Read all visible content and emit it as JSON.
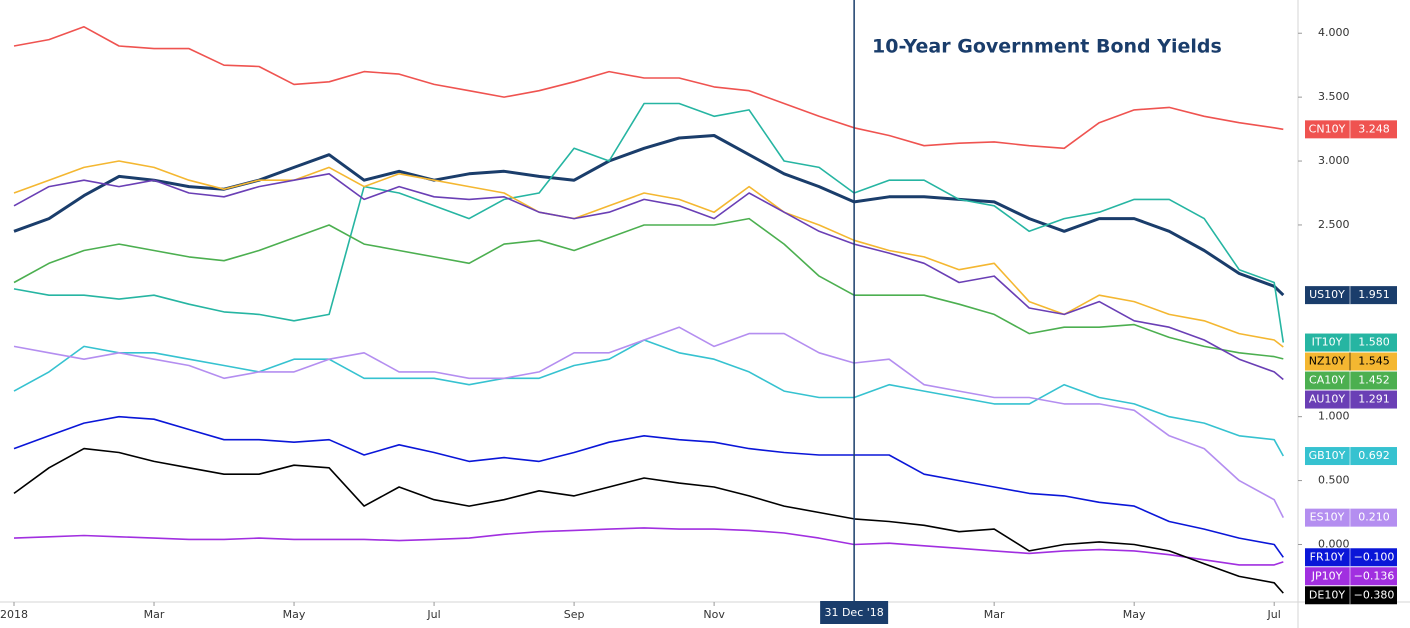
{
  "chart_data": {
    "type": "line",
    "title": "10-Year Government Bond Yields",
    "x": [
      0,
      0.5,
      1,
      1.5,
      2,
      2.5,
      3,
      3.5,
      4,
      4.5,
      5,
      5.5,
      6,
      6.5,
      7,
      7.5,
      8,
      8.5,
      9,
      9.5,
      10,
      10.5,
      11,
      11.5,
      12,
      12.5,
      13,
      13.5,
      14,
      14.5,
      15,
      15.5,
      16,
      16.5,
      17,
      17.5,
      18,
      18.13
    ],
    "xlim": [
      -0.2,
      18.34
    ],
    "xticks": [
      {
        "value": 0,
        "label": "2018"
      },
      {
        "value": 2,
        "label": "Mar"
      },
      {
        "value": 4,
        "label": "May"
      },
      {
        "value": 6,
        "label": "Jul"
      },
      {
        "value": 8,
        "label": "Sep"
      },
      {
        "value": 10,
        "label": "Nov"
      },
      {
        "value": 14,
        "label": "Mar"
      },
      {
        "value": 16,
        "label": "May"
      },
      {
        "value": 18,
        "label": "Jul"
      }
    ],
    "marker": {
      "x": 12,
      "label": "31 Dec '18"
    },
    "ylim": [
      -0.45,
      4.26
    ],
    "yticks": [
      {
        "value": 4,
        "label": "4.000"
      },
      {
        "value": 3.5,
        "label": "3.500"
      },
      {
        "value": 3,
        "label": "3.000"
      },
      {
        "value": 2.5,
        "label": "2.500"
      },
      {
        "value": 1,
        "label": "1.000"
      },
      {
        "value": 0.5,
        "label": "0.500"
      },
      {
        "value": 0,
        "label": "0.000"
      }
    ],
    "series": [
      {
        "name": "CN10Y",
        "color": "#ef5350",
        "values": [
          3.9,
          3.95,
          4.05,
          3.9,
          3.88,
          3.88,
          3.75,
          3.74,
          3.6,
          3.62,
          3.7,
          3.68,
          3.6,
          3.55,
          3.5,
          3.55,
          3.62,
          3.7,
          3.65,
          3.65,
          3.58,
          3.55,
          3.45,
          3.35,
          3.26,
          3.2,
          3.12,
          3.14,
          3.15,
          3.12,
          3.1,
          3.3,
          3.4,
          3.42,
          3.35,
          3.3,
          3.26,
          3.248
        ]
      },
      {
        "name": "US10Y",
        "color": "#1a3d6b",
        "values": [
          2.45,
          2.55,
          2.73,
          2.88,
          2.85,
          2.8,
          2.78,
          2.85,
          2.95,
          3.05,
          2.85,
          2.92,
          2.85,
          2.9,
          2.92,
          2.88,
          2.85,
          3.0,
          3.1,
          3.18,
          3.2,
          3.05,
          2.9,
          2.8,
          2.68,
          2.72,
          2.72,
          2.7,
          2.68,
          2.55,
          2.45,
          2.55,
          2.55,
          2.45,
          2.3,
          2.12,
          2.02,
          1.951
        ]
      },
      {
        "name": "IT10Y",
        "color": "#26b5a2",
        "values": [
          2.0,
          1.95,
          1.95,
          1.92,
          1.95,
          1.88,
          1.82,
          1.8,
          1.75,
          1.8,
          2.8,
          2.75,
          2.65,
          2.55,
          2.7,
          2.75,
          3.1,
          3.0,
          3.45,
          3.45,
          3.35,
          3.4,
          3.0,
          2.95,
          2.75,
          2.85,
          2.85,
          2.7,
          2.65,
          2.45,
          2.55,
          2.6,
          2.7,
          2.7,
          2.55,
          2.15,
          2.05,
          1.58
        ],
        "value_labels": [
          null,
          null,
          null,
          null,
          null,
          null,
          null,
          null,
          null,
          null,
          null,
          null,
          null,
          null,
          null,
          null,
          null,
          null,
          null,
          null,
          null,
          null,
          null,
          null,
          null,
          null,
          null,
          null,
          null,
          null,
          null,
          null,
          null,
          null,
          null,
          null,
          null,
          "1.580"
        ]
      },
      {
        "name": "NZ10Y",
        "color": "#f4b731",
        "values": [
          2.75,
          2.85,
          2.95,
          3.0,
          2.95,
          2.85,
          2.78,
          2.85,
          2.85,
          2.95,
          2.8,
          2.9,
          2.85,
          2.8,
          2.75,
          2.6,
          2.55,
          2.65,
          2.75,
          2.7,
          2.6,
          2.8,
          2.6,
          2.5,
          2.38,
          2.3,
          2.25,
          2.15,
          2.2,
          1.9,
          1.8,
          1.95,
          1.9,
          1.8,
          1.75,
          1.65,
          1.6,
          1.545
        ]
      },
      {
        "name": "CA10Y",
        "color": "#4caf50",
        "values": [
          2.05,
          2.2,
          2.3,
          2.35,
          2.3,
          2.25,
          2.22,
          2.3,
          2.4,
          2.5,
          2.35,
          2.3,
          2.25,
          2.2,
          2.35,
          2.38,
          2.3,
          2.4,
          2.5,
          2.5,
          2.5,
          2.55,
          2.35,
          2.1,
          1.95,
          1.95,
          1.95,
          1.88,
          1.8,
          1.65,
          1.7,
          1.7,
          1.72,
          1.62,
          1.55,
          1.5,
          1.47,
          1.452
        ]
      },
      {
        "name": "AU10Y",
        "color": "#6a3fb5",
        "values": [
          2.65,
          2.8,
          2.85,
          2.8,
          2.85,
          2.75,
          2.72,
          2.8,
          2.85,
          2.9,
          2.7,
          2.8,
          2.72,
          2.7,
          2.72,
          2.6,
          2.55,
          2.6,
          2.7,
          2.65,
          2.55,
          2.75,
          2.6,
          2.45,
          2.35,
          2.28,
          2.2,
          2.05,
          2.1,
          1.85,
          1.8,
          1.9,
          1.75,
          1.7,
          1.6,
          1.45,
          1.35,
          1.291
        ]
      },
      {
        "name": "GB10Y",
        "color": "#36c2d0",
        "values": [
          1.2,
          1.35,
          1.55,
          1.5,
          1.5,
          1.45,
          1.4,
          1.35,
          1.45,
          1.45,
          1.3,
          1.3,
          1.3,
          1.25,
          1.3,
          1.3,
          1.4,
          1.45,
          1.6,
          1.5,
          1.45,
          1.35,
          1.2,
          1.15,
          1.15,
          1.25,
          1.2,
          1.15,
          1.1,
          1.1,
          1.25,
          1.15,
          1.1,
          1.0,
          0.95,
          0.85,
          0.82,
          0.692
        ]
      },
      {
        "name": "ES10Y",
        "color": "#b48ef0",
        "values": [
          1.55,
          1.5,
          1.45,
          1.5,
          1.45,
          1.4,
          1.3,
          1.35,
          1.35,
          1.45,
          1.5,
          1.35,
          1.35,
          1.3,
          1.3,
          1.35,
          1.5,
          1.5,
          1.6,
          1.7,
          1.55,
          1.65,
          1.65,
          1.5,
          1.42,
          1.45,
          1.25,
          1.2,
          1.15,
          1.15,
          1.1,
          1.1,
          1.05,
          0.85,
          0.75,
          0.5,
          0.35,
          0.21
        ],
        "value_labels": [
          null,
          null,
          null,
          null,
          null,
          null,
          null,
          null,
          null,
          null,
          null,
          null,
          null,
          null,
          null,
          null,
          null,
          null,
          null,
          null,
          null,
          null,
          null,
          null,
          null,
          null,
          null,
          null,
          null,
          null,
          null,
          null,
          null,
          null,
          null,
          null,
          null,
          "0.210"
        ]
      },
      {
        "name": "FR10Y",
        "color": "#0a16d8",
        "values": [
          0.75,
          0.85,
          0.95,
          1.0,
          0.98,
          0.9,
          0.82,
          0.82,
          0.8,
          0.82,
          0.7,
          0.78,
          0.72,
          0.65,
          0.68,
          0.65,
          0.72,
          0.8,
          0.85,
          0.82,
          0.8,
          0.75,
          0.72,
          0.7,
          0.7,
          0.7,
          0.55,
          0.5,
          0.45,
          0.4,
          0.38,
          0.33,
          0.3,
          0.18,
          0.12,
          0.05,
          0.0,
          -0.1
        ],
        "value_labels": [
          null,
          null,
          null,
          null,
          null,
          null,
          null,
          null,
          null,
          null,
          null,
          null,
          null,
          null,
          null,
          null,
          null,
          null,
          null,
          null,
          null,
          null,
          null,
          null,
          null,
          null,
          null,
          null,
          null,
          null,
          null,
          null,
          null,
          null,
          null,
          null,
          null,
          "−0.100"
        ]
      },
      {
        "name": "JP10Y",
        "color": "#a12fe0",
        "values": [
          0.05,
          0.06,
          0.07,
          0.06,
          0.05,
          0.04,
          0.04,
          0.05,
          0.04,
          0.04,
          0.04,
          0.03,
          0.04,
          0.05,
          0.08,
          0.1,
          0.11,
          0.12,
          0.13,
          0.12,
          0.12,
          0.11,
          0.09,
          0.05,
          0.0,
          0.01,
          -0.01,
          -0.03,
          -0.05,
          -0.07,
          -0.05,
          -0.04,
          -0.05,
          -0.08,
          -0.12,
          -0.16,
          -0.16,
          -0.136
        ],
        "value_labels": [
          null,
          null,
          null,
          null,
          null,
          null,
          null,
          null,
          null,
          null,
          null,
          null,
          null,
          null,
          null,
          null,
          null,
          null,
          null,
          null,
          null,
          null,
          null,
          null,
          null,
          null,
          null,
          null,
          null,
          null,
          null,
          null,
          null,
          null,
          null,
          null,
          null,
          "−0.136"
        ]
      },
      {
        "name": "DE10Y",
        "color": "#000000",
        "values": [
          0.4,
          0.6,
          0.75,
          0.72,
          0.65,
          0.6,
          0.55,
          0.55,
          0.62,
          0.6,
          0.3,
          0.45,
          0.35,
          0.3,
          0.35,
          0.42,
          0.38,
          0.45,
          0.52,
          0.48,
          0.45,
          0.38,
          0.3,
          0.25,
          0.2,
          0.18,
          0.15,
          0.1,
          0.12,
          -0.05,
          0.0,
          0.02,
          0.0,
          -0.05,
          -0.15,
          -0.25,
          -0.3,
          -0.38
        ],
        "value_labels": [
          null,
          null,
          null,
          null,
          null,
          null,
          null,
          null,
          null,
          null,
          null,
          null,
          null,
          null,
          null,
          null,
          null,
          null,
          null,
          null,
          null,
          null,
          null,
          null,
          null,
          null,
          null,
          null,
          null,
          null,
          null,
          null,
          null,
          null,
          null,
          null,
          null,
          "−0.380"
        ]
      }
    ]
  }
}
